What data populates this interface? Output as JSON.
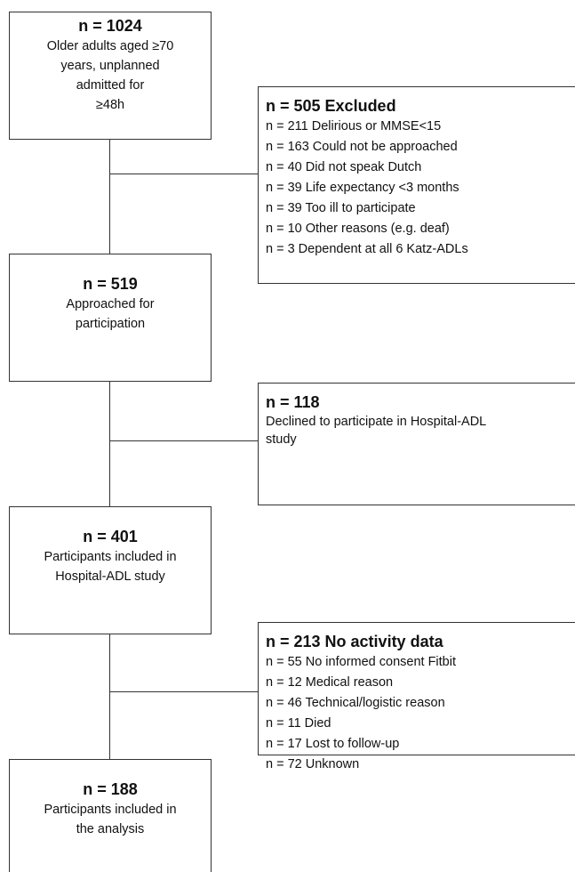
{
  "nodes": [
    {
      "title": "n = 1024",
      "lines": [
        "Older adults aged ≥70",
        "years, unplanned",
        "admitted for",
        "≥48h"
      ]
    },
    {
      "title": "n = 519",
      "lines": [
        "Approached for",
        "participation"
      ]
    },
    {
      "title": "n = 401",
      "lines": [
        "Participants included in",
        "Hospital-ADL study"
      ]
    },
    {
      "title": "n = 188",
      "lines": [
        "Participants included in",
        "the analysis"
      ]
    }
  ],
  "exclusions": [
    {
      "title": "n = 505 Excluded",
      "items": [
        "n = 211 Delirious or MMSE<15",
        "n = 163 Could not be approached",
        "n = 40 Did not speak Dutch",
        "n = 39 Life expectancy <3 months",
        "n = 39 Too ill to participate",
        "n = 10 Other reasons (e.g. deaf)",
        "n = 3 Dependent at all 6 Katz-ADLs"
      ]
    },
    {
      "title": "n = 118",
      "items": [
        "Declined to participate in Hospital-ADL",
        "study"
      ]
    },
    {
      "title": "n = 213 No activity data",
      "items": [
        "n = 55 No informed consent Fitbit",
        "n = 12 Medical reason",
        "n = 46 Technical/logistic reason",
        "n = 11 Died",
        "n = 17 Lost to follow-up",
        "n = 72 Unknown"
      ]
    }
  ]
}
